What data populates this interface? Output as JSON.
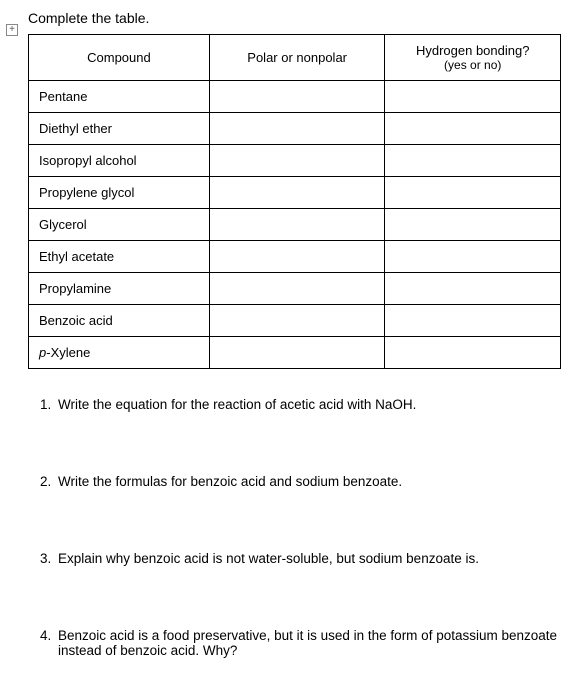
{
  "instruction": "Complete the table.",
  "table": {
    "headers": {
      "compound": "Compound",
      "polar": "Polar or nonpolar",
      "hbond_line1": "Hydrogen bonding?",
      "hbond_line2": "(yes or no)"
    },
    "rows": [
      {
        "compound": "Pentane",
        "polar": "",
        "hbond": ""
      },
      {
        "compound": "Diethyl ether",
        "polar": "",
        "hbond": ""
      },
      {
        "compound": "Isopropyl alcohol",
        "polar": "",
        "hbond": ""
      },
      {
        "compound": "Propylene glycol",
        "polar": "",
        "hbond": ""
      },
      {
        "compound": "Glycerol",
        "polar": "",
        "hbond": ""
      },
      {
        "compound": "Ethyl acetate",
        "polar": "",
        "hbond": ""
      },
      {
        "compound": "Propylamine",
        "polar": "",
        "hbond": ""
      },
      {
        "compound": "Benzoic acid",
        "polar": "",
        "hbond": ""
      },
      {
        "compound_prefix": "p",
        "compound_rest": "-Xylene",
        "polar": "",
        "hbond": ""
      }
    ]
  },
  "questions": {
    "q1": "Write the equation for the reaction of acetic acid with NaOH.",
    "q2": "Write the formulas for benzoic acid and sodium benzoate.",
    "q3": "Explain why benzoic acid is not water-soluble, but sodium benzoate is.",
    "q4": "Benzoic acid is a food preservative, but it is used in the form of potassium benzoate instead of benzoic acid. Why?"
  },
  "icons": {
    "expand": "+"
  }
}
